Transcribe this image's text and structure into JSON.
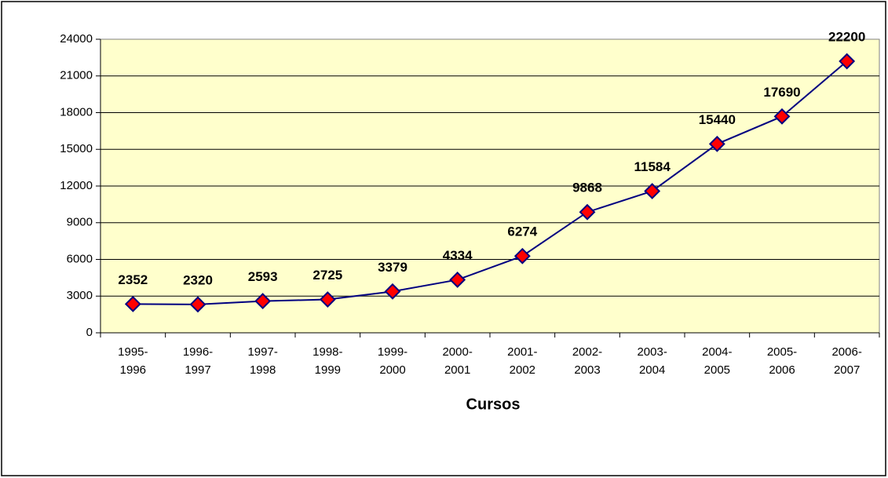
{
  "chart_data": {
    "type": "line",
    "x_label": "Cursos",
    "categories": [
      "1995-1996",
      "1996-1997",
      "1997-1998",
      "1998-1999",
      "1999-2000",
      "2000-2001",
      "2001-2002",
      "2002-2003",
      "2003-2004",
      "2004-2005",
      "2005-2006",
      "2006-2007"
    ],
    "series": [
      {
        "color": "#000080",
        "marker_color": "#ff0000",
        "values": [
          2352,
          2320,
          2593,
          2725,
          3379,
          4334,
          6274,
          9868,
          11584,
          15440,
          17690,
          22200
        ]
      }
    ],
    "ylim": [
      0,
      24000
    ],
    "yticks": [
      0,
      3000,
      6000,
      9000,
      12000,
      15000,
      18000,
      21000,
      24000
    ],
    "grid": true,
    "plot_background": "#ffffcc"
  }
}
